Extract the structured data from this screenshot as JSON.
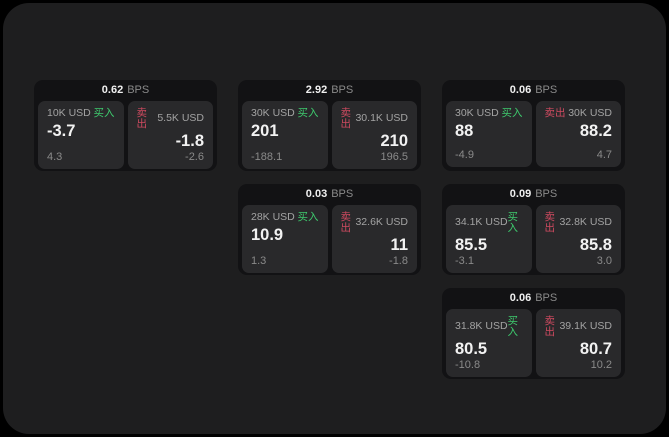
{
  "ui": {
    "bps_unit": "BPS",
    "buy_label": "买入",
    "sell_label": "卖出"
  },
  "colors": {
    "page_background": "#000000",
    "panel_background": "#1e1e1f",
    "card_background": "#121214",
    "tile_background": "#29292b",
    "buy_green": "#3ecb6e",
    "sell_red": "#cf4a60",
    "price_white": "#f2f2f2",
    "muted_gray": "#8a8a8a"
  },
  "cards": [
    {
      "bps_value": "0.62",
      "buy": {
        "notional": "10K USD",
        "price": "-3.7",
        "delta": "4.3"
      },
      "sell": {
        "notional": "5.5K USD",
        "price": "-1.8",
        "delta": "-2.6"
      }
    },
    {
      "bps_value": "2.92",
      "buy": {
        "notional": "30K USD",
        "price": "201",
        "delta": "-188.1"
      },
      "sell": {
        "notional": "30.1K USD",
        "price": "210",
        "delta": "196.5"
      }
    },
    {
      "bps_value": "0.06",
      "buy": {
        "notional": "30K USD",
        "price": "88",
        "delta": "-4.9"
      },
      "sell": {
        "notional": "30K USD",
        "price": "88.2",
        "delta": "4.7"
      }
    },
    {
      "bps_value": "0.03",
      "buy": {
        "notional": "28K USD",
        "price": "10.9",
        "delta": "1.3"
      },
      "sell": {
        "notional": "32.6K USD",
        "price": "11",
        "delta": "-1.8"
      }
    },
    {
      "bps_value": "0.09",
      "buy": {
        "notional": "34.1K USD",
        "price": "85.5",
        "delta": "-3.1"
      },
      "sell": {
        "notional": "32.8K USD",
        "price": "85.8",
        "delta": "3.0"
      }
    },
    {
      "bps_value": "0.06",
      "buy": {
        "notional": "31.8K USD",
        "price": "80.5",
        "delta": "-10.8"
      },
      "sell": {
        "notional": "39.1K USD",
        "price": "80.7",
        "delta": "10.2"
      }
    }
  ]
}
